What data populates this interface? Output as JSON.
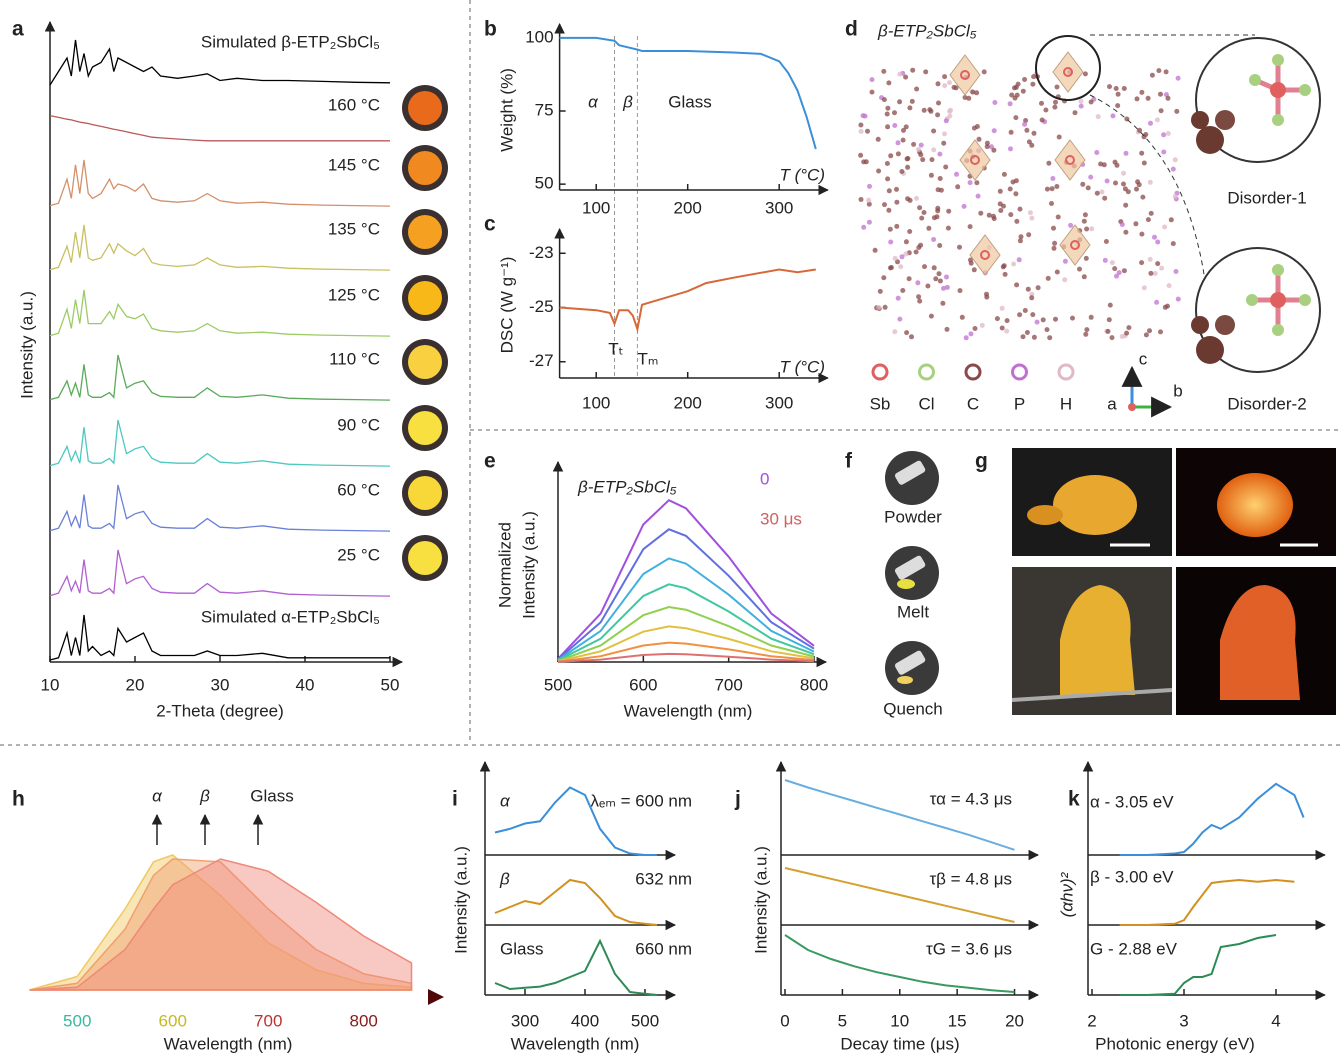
{
  "chart_data": [
    {
      "panel": "a",
      "type": "line",
      "ylabel": "Intensity (a.u.)",
      "xlabel": "2-Theta (degree)",
      "xlim": [
        10,
        50
      ],
      "xticks": [
        10,
        20,
        30,
        40,
        50
      ],
      "ylim": [
        0,
        1
      ],
      "x": [
        10,
        11,
        12,
        12.5,
        13,
        13.5,
        14,
        14.5,
        15,
        16,
        17,
        17.5,
        18,
        19,
        20,
        21,
        22,
        23,
        25,
        27,
        28.5,
        30,
        32,
        35,
        38,
        42,
        46,
        50
      ],
      "series": [
        {
          "name": "Simulated β-ETP₂SbCl₅",
          "color": "#000000",
          "values": [
            0,
            0.3,
            0.6,
            0.2,
            1.0,
            0.3,
            0.7,
            0.2,
            0.4,
            0.5,
            0.8,
            0.3,
            0.6,
            0.5,
            0.4,
            0.3,
            0.4,
            0.2,
            0.15,
            0.2,
            0.25,
            0.1,
            0.15,
            0.1,
            0.1,
            0.08,
            0.06,
            0.05
          ]
        },
        {
          "name": "160 °C",
          "color": "#b85a5a",
          "values": [
            0.9,
            0.85,
            0.8,
            0.78,
            0.75,
            0.72,
            0.7,
            0.68,
            0.65,
            0.6,
            0.55,
            0.52,
            0.5,
            0.45,
            0.4,
            0.35,
            0.3,
            0.28,
            0.25,
            0.22,
            0.2,
            0.2,
            0.2,
            0.2,
            0.2,
            0.2,
            0.2,
            0.2
          ]
        },
        {
          "name": "145 °C",
          "color": "#d4906a",
          "values": [
            0.05,
            0.1,
            0.6,
            0.2,
            0.9,
            0.3,
            1.0,
            0.3,
            0.2,
            0.3,
            0.6,
            0.4,
            0.5,
            0.45,
            0.35,
            0.5,
            0.2,
            0.15,
            0.12,
            0.15,
            0.3,
            0.15,
            0.1,
            0.12,
            0.08,
            0.06,
            0.05,
            0.04
          ]
        },
        {
          "name": "135 °C",
          "color": "#c9c060",
          "values": [
            0.05,
            0.1,
            0.55,
            0.2,
            0.85,
            0.3,
            1.0,
            0.3,
            0.25,
            0.3,
            0.6,
            0.4,
            0.6,
            0.45,
            0.35,
            0.5,
            0.2,
            0.15,
            0.12,
            0.15,
            0.3,
            0.15,
            0.1,
            0.12,
            0.08,
            0.06,
            0.05,
            0.04
          ]
        },
        {
          "name": "125 °C",
          "color": "#9ccc65",
          "values": [
            0.05,
            0.1,
            0.6,
            0.2,
            0.8,
            0.3,
            1.0,
            0.3,
            0.3,
            0.3,
            0.55,
            0.4,
            0.7,
            0.45,
            0.4,
            0.5,
            0.2,
            0.15,
            0.12,
            0.15,
            0.3,
            0.15,
            0.1,
            0.12,
            0.08,
            0.06,
            0.05,
            0.04
          ]
        },
        {
          "name": "110 °C",
          "color": "#5aaa5a",
          "values": [
            0.05,
            0.1,
            0.45,
            0.15,
            0.4,
            0.1,
            0.8,
            0.15,
            0.1,
            0.1,
            0.2,
            0.1,
            1.0,
            0.3,
            0.4,
            0.45,
            0.2,
            0.12,
            0.1,
            0.1,
            0.3,
            0.12,
            0.1,
            0.15,
            0.08,
            0.06,
            0.05,
            0.04
          ]
        },
        {
          "name": "90 °C",
          "color": "#4ec8c0",
          "values": [
            0.05,
            0.1,
            0.45,
            0.15,
            0.35,
            0.1,
            0.85,
            0.15,
            0.1,
            0.1,
            0.2,
            0.1,
            1.0,
            0.3,
            0.4,
            0.45,
            0.2,
            0.12,
            0.1,
            0.1,
            0.3,
            0.12,
            0.1,
            0.15,
            0.08,
            0.06,
            0.05,
            0.04
          ]
        },
        {
          "name": "60 °C",
          "color": "#6a80d8",
          "values": [
            0.05,
            0.1,
            0.45,
            0.15,
            0.35,
            0.1,
            0.8,
            0.15,
            0.1,
            0.1,
            0.2,
            0.1,
            1.0,
            0.3,
            0.4,
            0.45,
            0.2,
            0.12,
            0.1,
            0.1,
            0.3,
            0.12,
            0.1,
            0.15,
            0.08,
            0.06,
            0.05,
            0.04
          ]
        },
        {
          "name": "25 °C",
          "color": "#b060d0",
          "values": [
            0.05,
            0.1,
            0.45,
            0.15,
            0.35,
            0.1,
            0.8,
            0.15,
            0.1,
            0.1,
            0.2,
            0.1,
            1.0,
            0.3,
            0.4,
            0.45,
            0.2,
            0.12,
            0.1,
            0.1,
            0.3,
            0.12,
            0.1,
            0.15,
            0.08,
            0.06,
            0.05,
            0.04
          ]
        },
        {
          "name": "Simulated α-ETP₂SbCl₅",
          "color": "#000000",
          "values": [
            0,
            0.05,
            0.6,
            0.1,
            0.5,
            0.1,
            1.0,
            0.2,
            0.3,
            0.1,
            0.2,
            0.1,
            0.7,
            0.4,
            0.5,
            0.6,
            0.2,
            0.1,
            0.1,
            0.1,
            0.2,
            0.1,
            0.1,
            0.15,
            0.05,
            0.05,
            0.05,
            0.05
          ]
        }
      ]
    },
    {
      "panel": "b",
      "type": "line",
      "ylabel": "Weight (%)",
      "xlabel": "T (°C)",
      "xlim": [
        60,
        340
      ],
      "xticks": [
        100,
        200,
        300
      ],
      "ylim": [
        48,
        102
      ],
      "yticks": [
        50,
        75,
        100
      ],
      "annotations": [
        "α",
        "β",
        "Glass"
      ],
      "x": [
        60,
        100,
        120,
        125,
        145,
        150,
        200,
        250,
        280,
        300,
        310,
        320,
        330,
        340
      ],
      "series": [
        {
          "color": "#3a8fd8",
          "values": [
            100,
            100,
            99,
            97.5,
            96,
            95.5,
            95.5,
            95,
            94.5,
            92,
            88,
            82,
            73,
            62
          ]
        }
      ]
    },
    {
      "panel": "c",
      "type": "line",
      "ylabel": "DSC (W g⁻¹)",
      "xlabel": "T (°C)",
      "xlim": [
        60,
        340
      ],
      "xticks": [
        100,
        200,
        300
      ],
      "ylim": [
        -27.6,
        -22.4
      ],
      "yticks": [
        -27,
        -25,
        -23
      ],
      "annotations": [
        "Tₜ",
        "Tₘ"
      ],
      "x": [
        60,
        100,
        115,
        120,
        125,
        135,
        140,
        145,
        150,
        160,
        200,
        220,
        250,
        300,
        320,
        340
      ],
      "series": [
        {
          "color": "#d8683a",
          "values": [
            -25,
            -25.1,
            -25.2,
            -25.6,
            -25.1,
            -25.1,
            -25.3,
            -25.8,
            -24.9,
            -24.8,
            -24.4,
            -24.1,
            -23.9,
            -23.6,
            -23.7,
            -23.6
          ]
        }
      ]
    },
    {
      "panel": "d",
      "type": "structure",
      "title": "β-ETP₂SbCl₅",
      "atoms": [
        {
          "name": "Sb",
          "color": "#e06060"
        },
        {
          "name": "Cl",
          "color": "#a8d080"
        },
        {
          "name": "C",
          "color": "#8a4a4a"
        },
        {
          "name": "P",
          "color": "#c070d0"
        },
        {
          "name": "H",
          "color": "#e0b8c8"
        }
      ],
      "axes": [
        "a",
        "b",
        "c"
      ],
      "insets": [
        "Disorder-1",
        "Disorder-2"
      ]
    },
    {
      "panel": "e",
      "type": "line",
      "title": "β-ETP₂SbCl₅",
      "ylabel": [
        "Normalized",
        "Intensity (a.u.)"
      ],
      "xlabel": "Wavelength (nm)",
      "xlim": [
        500,
        800
      ],
      "xticks": [
        500,
        600,
        700,
        800
      ],
      "ylim": [
        0,
        1.1
      ],
      "colorbar": [
        "0",
        "30 μs"
      ],
      "x": [
        500,
        550,
        600,
        630,
        650,
        700,
        750,
        800
      ],
      "series": [
        {
          "color": "#a050e0",
          "values": [
            0.02,
            0.3,
            0.85,
            1,
            0.95,
            0.65,
            0.3,
            0.1
          ]
        },
        {
          "color": "#6070e0",
          "values": [
            0.016,
            0.246,
            0.697,
            0.82,
            0.779,
            0.533,
            0.246,
            0.082
          ]
        },
        {
          "color": "#40b0e0",
          "values": [
            0.013,
            0.192,
            0.544,
            0.64,
            0.608,
            0.416,
            0.192,
            0.064
          ]
        },
        {
          "color": "#40c8a0",
          "values": [
            0.01,
            0.144,
            0.408,
            0.48,
            0.456,
            0.312,
            0.144,
            0.048
          ]
        },
        {
          "color": "#90d050",
          "values": [
            0.007,
            0.102,
            0.289,
            0.34,
            0.323,
            0.221,
            0.102,
            0.034
          ]
        },
        {
          "color": "#e0c040",
          "values": [
            0.004,
            0.066,
            0.187,
            0.22,
            0.209,
            0.143,
            0.066,
            0.022
          ]
        },
        {
          "color": "#f09040",
          "values": [
            0.002,
            0.036,
            0.102,
            0.12,
            0.114,
            0.078,
            0.036,
            0.012
          ]
        },
        {
          "color": "#e07070",
          "values": [
            0.001,
            0.015,
            0.043,
            0.05,
            0.048,
            0.033,
            0.015,
            0.005
          ]
        }
      ]
    },
    {
      "panel": "f",
      "type": "photo",
      "labels": [
        "Powder",
        "Melt",
        "Quench"
      ]
    },
    {
      "panel": "g",
      "type": "photo"
    },
    {
      "panel": "h",
      "type": "area",
      "xlabel": "Wavelength (nm)",
      "xlim": [
        450,
        860
      ],
      "xticks": [
        500,
        600,
        700,
        800
      ],
      "xtick_colors": [
        "#3ab8a0",
        "#c8b820",
        "#c03030",
        "#8a1a1a"
      ],
      "ylim": [
        0,
        1.1
      ],
      "x": [
        450,
        500,
        550,
        580,
        600,
        650,
        700,
        750,
        800,
        850
      ],
      "series": [
        {
          "name": "α",
          "color": "#f0c860",
          "values": [
            0,
            0.1,
            0.6,
            0.95,
            1,
            0.7,
            0.35,
            0.15,
            0.05,
            0.02
          ]
        },
        {
          "name": "β",
          "color": "#f0a070",
          "values": [
            0,
            0.05,
            0.45,
            0.85,
            0.97,
            0.95,
            0.6,
            0.3,
            0.12,
            0.05
          ]
        },
        {
          "name": "Glass",
          "color": "#f08878",
          "values": [
            0,
            0.02,
            0.3,
            0.6,
            0.78,
            0.97,
            0.88,
            0.65,
            0.4,
            0.2
          ]
        }
      ]
    },
    {
      "panel": "i",
      "type": "line",
      "ylabel": "Intensity (a.u.)",
      "xlabel": "Wavelength (nm)",
      "xlim": [
        240,
        530
      ],
      "xticks": [
        300,
        400,
        500
      ],
      "ylim": [
        0,
        1
      ],
      "x": [
        250,
        275,
        300,
        325,
        350,
        375,
        400,
        425,
        450,
        475,
        500,
        520
      ],
      "series": [
        {
          "name": "α",
          "label": "λₑₘ = 600 nm",
          "color": "#3a8fd8",
          "values": [
            0.3,
            0.35,
            0.42,
            0.45,
            0.7,
            0.9,
            0.8,
            0.35,
            0.1,
            0.02,
            0,
            0
          ]
        },
        {
          "name": "β",
          "label": "632 nm",
          "color": "#d4901e",
          "values": [
            0.2,
            0.3,
            0.4,
            0.35,
            0.55,
            0.75,
            0.7,
            0.45,
            0.15,
            0.05,
            0.02,
            0
          ]
        },
        {
          "name": "Glass",
          "label": "660 nm",
          "color": "#2e8b57",
          "values": [
            0.2,
            0.1,
            0.12,
            0.14,
            0.2,
            0.3,
            0.4,
            0.9,
            0.35,
            0.05,
            0.02,
            0
          ]
        }
      ]
    },
    {
      "panel": "j",
      "type": "line",
      "ylabel": "Intensity (a.u.)",
      "xlabel": "Decay time (μs)",
      "xlim": [
        0,
        21
      ],
      "xticks": [
        0,
        5,
        10,
        15,
        20
      ],
      "ylim": [
        0,
        1
      ],
      "x": [
        0,
        2,
        4,
        6,
        8,
        10,
        12,
        14,
        16,
        18,
        20
      ],
      "series": [
        {
          "label": "τα = 4.3 μs",
          "color": "#6aaee0",
          "values": [
            1,
            0.9,
            0.81,
            0.72,
            0.63,
            0.54,
            0.45,
            0.36,
            0.27,
            0.17,
            0.07
          ]
        },
        {
          "label": "τβ = 4.8 μs",
          "color": "#d4a030",
          "values": [
            0.95,
            0.86,
            0.77,
            0.68,
            0.59,
            0.5,
            0.41,
            0.32,
            0.23,
            0.14,
            0.05
          ]
        },
        {
          "label": "τG = 3.6 μs",
          "color": "#3a9a60",
          "values": [
            1,
            0.75,
            0.6,
            0.48,
            0.38,
            0.3,
            0.22,
            0.16,
            0.12,
            0.08,
            0.05
          ]
        }
      ]
    },
    {
      "panel": "k",
      "type": "line",
      "ylabel": "(αhν)²",
      "xlabel": "Photonic energy (eV)",
      "xlim": [
        2,
        4.4
      ],
      "xticks": [
        2,
        3,
        4
      ],
      "ylim": [
        0,
        1
      ],
      "x": [
        2.3,
        2.6,
        2.9,
        3.0,
        3.1,
        3.2,
        3.3,
        3.4,
        3.6,
        3.8,
        4.0,
        4.2,
        4.3
      ],
      "series": [
        {
          "label": "α - 3.05 eV",
          "color": "#3a8fd8",
          "values": [
            0,
            0,
            0.02,
            0.04,
            0.15,
            0.3,
            0.4,
            0.35,
            0.5,
            0.75,
            0.95,
            0.8,
            0.5
          ]
        },
        {
          "label": "β - 3.00 eV",
          "color": "#d4901e",
          "values": [
            0,
            0,
            0.02,
            0.08,
            0.3,
            0.5,
            0.7,
            0.72,
            0.75,
            0.72,
            0.75,
            0.72,
            null
          ]
        },
        {
          "label": "G - 2.88 eV",
          "color": "#2e8b57",
          "values": [
            0,
            0,
            0.02,
            0.2,
            0.3,
            0.3,
            0.35,
            0.8,
            0.85,
            0.95,
            1.0,
            null,
            null
          ]
        }
      ]
    }
  ]
}
